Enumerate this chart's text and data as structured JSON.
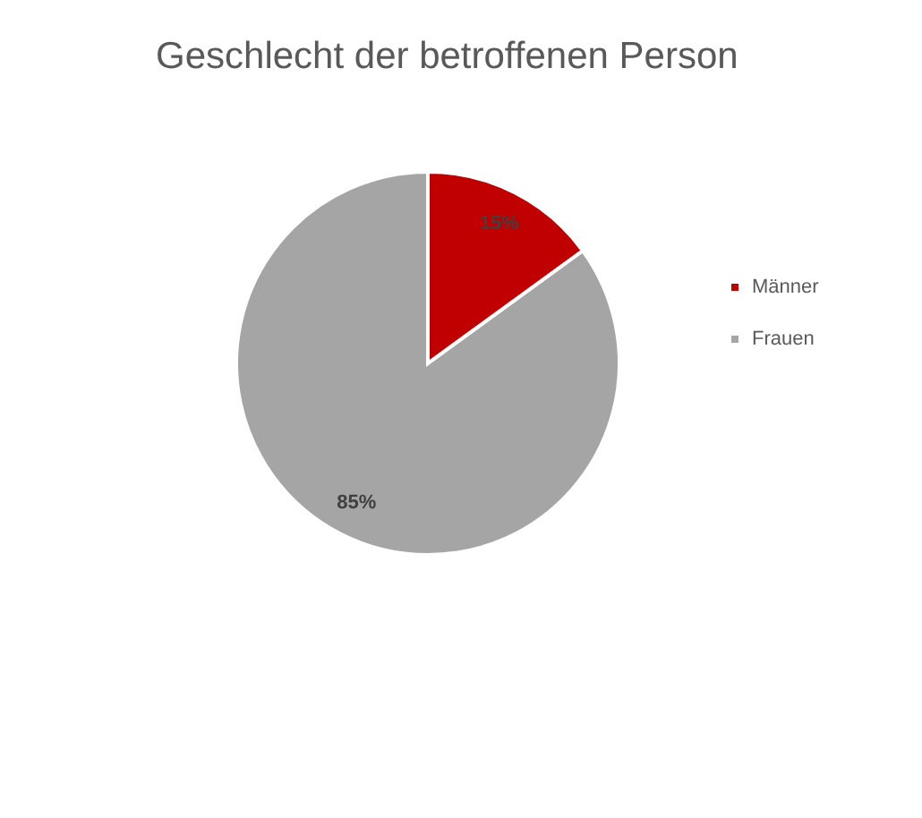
{
  "chart_data": {
    "type": "pie",
    "title": "Geschlecht der betroffenen Person",
    "categories": [
      "Männer",
      "Frauen"
    ],
    "values": [
      15,
      85
    ],
    "colors": [
      "#c00000",
      "#a5a5a5"
    ],
    "value_labels": [
      "15%",
      "85%"
    ],
    "legend": "right"
  }
}
